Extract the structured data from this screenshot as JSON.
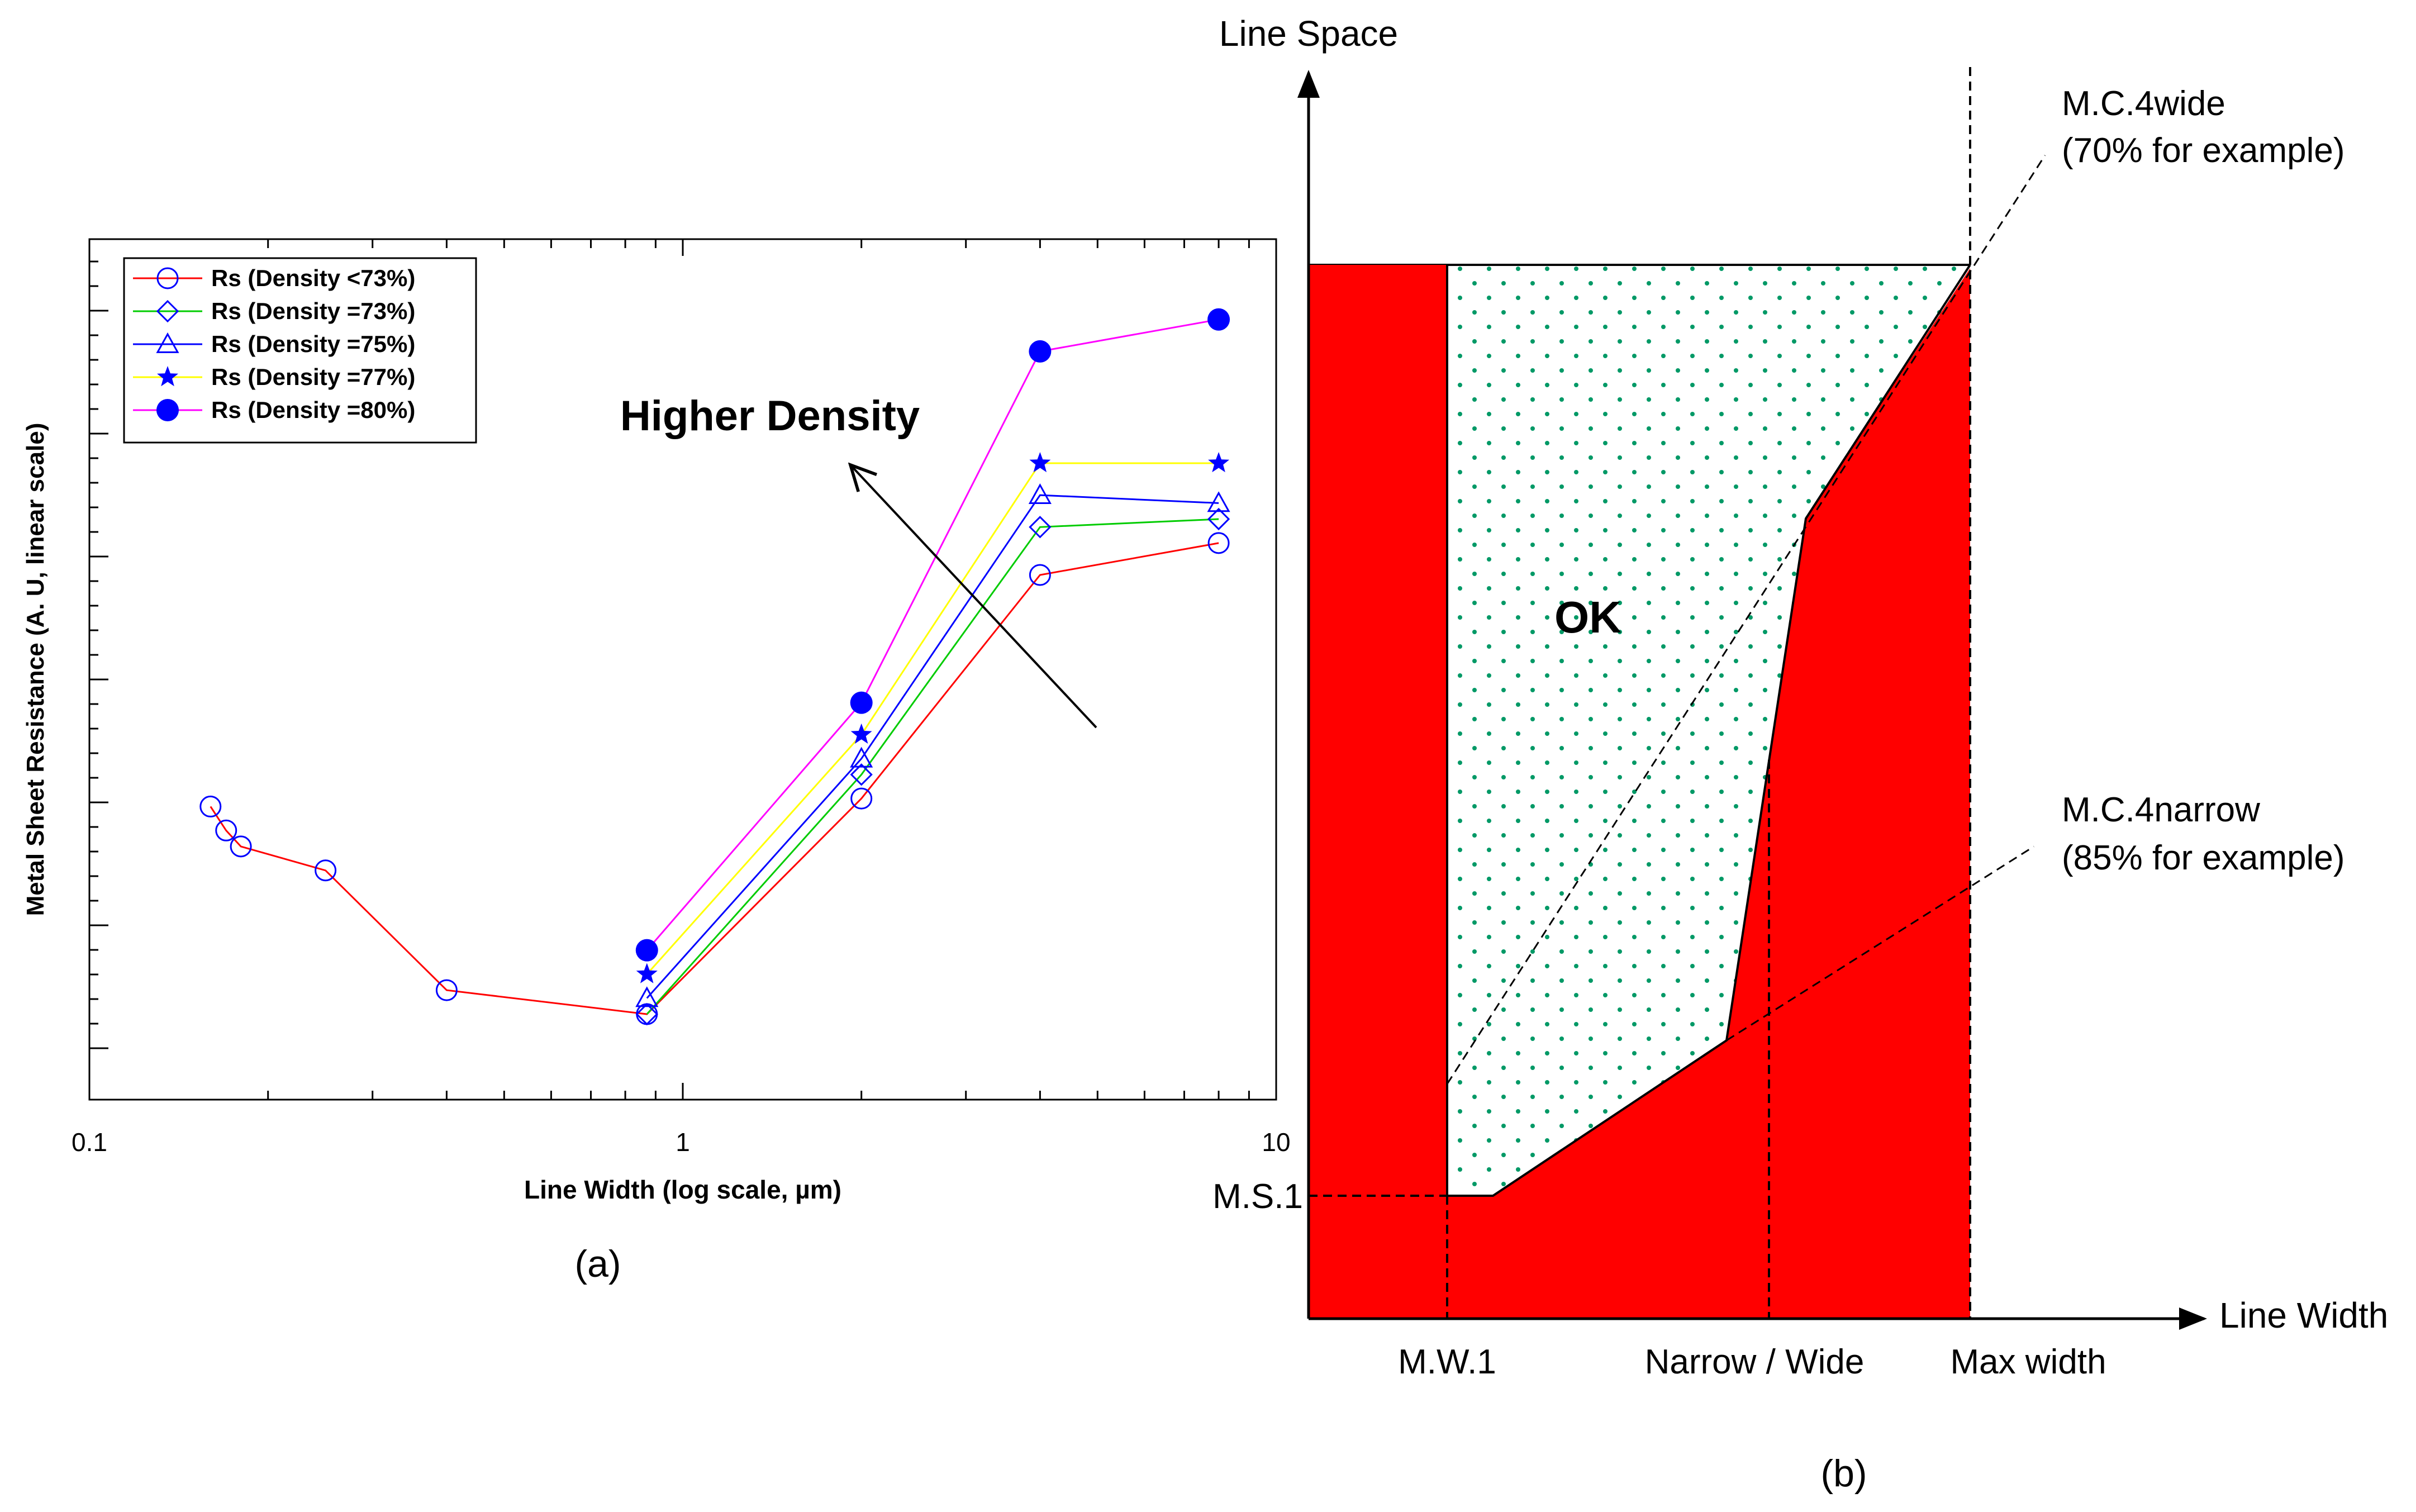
{
  "chart_data": [
    {
      "type": "line",
      "panel_label": "(a)",
      "xlabel": "Line Width (log scale,  µm)",
      "ylabel": "Metal Sheet Resistance (A. U, linear scale)",
      "xscale": "log",
      "xlim": [
        0.1,
        10
      ],
      "x_tick_labels": [
        "0.1",
        "1",
        "10"
      ],
      "ylim": [
        0,
        100
      ],
      "y_tick_count": 7,
      "y_tick_labels_shown": false,
      "grid": false,
      "legend_position": "top-left",
      "annotation": "Higher Density",
      "series": [
        {
          "name": "Rs (Density <73%)",
          "color": "#ff0000",
          "marker_color": "#0000ff",
          "marker": "circle-open",
          "x": [
            0.16,
            0.17,
            0.18,
            0.25,
            0.4,
            0.87,
            2,
            4,
            8
          ],
          "y": [
            33,
            30,
            28,
            25,
            10,
            7,
            34,
            62,
            66
          ]
        },
        {
          "name": "Rs (Density =73%)",
          "color": "#00cc00",
          "marker_color": "#0000ff",
          "marker": "diamond-open",
          "x": [
            0.87,
            2,
            4,
            8
          ],
          "y": [
            7,
            37,
            68,
            69
          ]
        },
        {
          "name": "Rs (Density =75%)",
          "color": "#0000ff",
          "marker_color": "#0000ff",
          "marker": "triangle-open",
          "x": [
            0.87,
            2,
            4,
            8
          ],
          "y": [
            9,
            39,
            72,
            71
          ]
        },
        {
          "name": "Rs (Density =77%)",
          "color": "#ffff00",
          "marker_color": "#0000ff",
          "marker": "star-filled",
          "x": [
            0.87,
            2,
            4,
            8
          ],
          "y": [
            12,
            42,
            76,
            76
          ]
        },
        {
          "name": "Rs (Density =80%)",
          "color": "#ff00ff",
          "marker_color": "#0000ff",
          "marker": "circle-filled",
          "x": [
            0.87,
            2,
            4,
            8
          ],
          "y": [
            15,
            46,
            90,
            94
          ]
        }
      ]
    },
    {
      "type": "area",
      "panel_label": "(b)",
      "xlabel": "Line Width",
      "ylabel": "Line Space",
      "x_tick_labels": [
        "M.W.1",
        "Narrow / Wide",
        "Max width"
      ],
      "y_tick_labels": [
        "M.S.1"
      ],
      "region_label": "OK",
      "reference_lines": [
        {
          "label": "M.C.4wide",
          "note": "(70% for example)"
        },
        {
          "label": "M.C.4narrow",
          "note": "(85% for example)"
        }
      ],
      "colors": {
        "forbidden": "#ff0000",
        "ok_dots": "#009966"
      }
    }
  ]
}
